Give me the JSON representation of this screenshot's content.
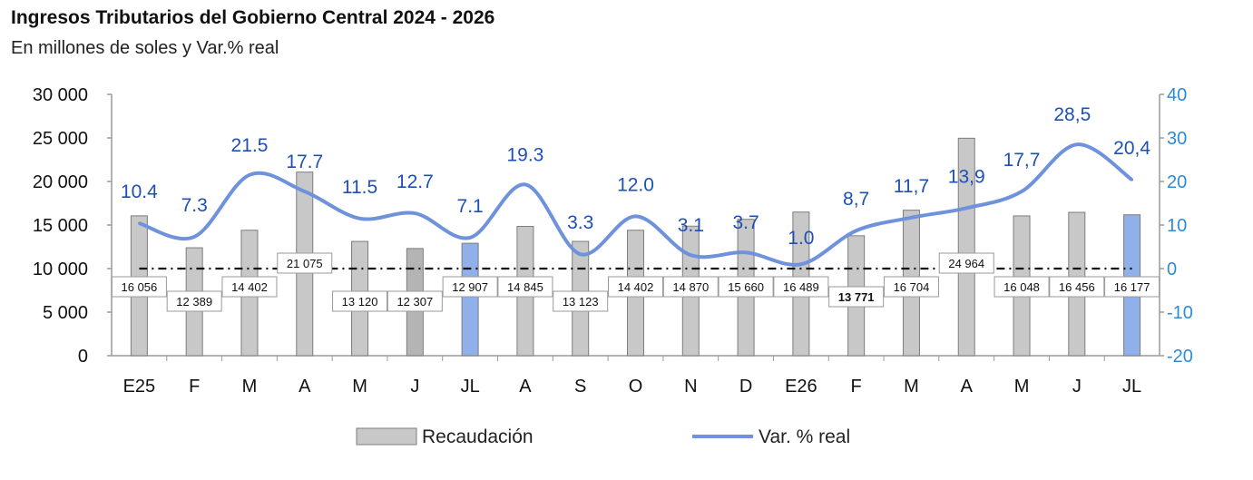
{
  "title": "Ingresos Tributarios del Gobierno Central 2024 - 2026",
  "subtitle": "En millones de soles y Var.% real",
  "colors": {
    "bar_gray": "#c8c8c8",
    "bar_gray_dark": "#b4b4b4",
    "bar_blue": "#8fb0e8",
    "line": "#6f92dc",
    "right_axis": "#2e8bd6",
    "point_label": "#1f4fb5"
  },
  "chart_data": {
    "type": "bar",
    "title": "Ingresos Tributarios del Gobierno Central 2024 - 2026",
    "subtitle": "En millones de soles y Var.% real",
    "categories": [
      "E25",
      "F",
      "M",
      "A",
      "M",
      "J",
      "JL",
      "A",
      "S",
      "O",
      "N",
      "D",
      "E26",
      "F",
      "M",
      "A",
      "M",
      "J",
      "JL"
    ],
    "series": [
      {
        "name": "Recaudación",
        "type": "bar",
        "axis": "left",
        "values": [
          16056,
          12389,
          14402,
          21075,
          13120,
          12307,
          12907,
          14845,
          13123,
          14402,
          14870,
          15660,
          16489,
          13771,
          16704,
          24964,
          16048,
          16456,
          16177
        ],
        "labels": [
          "16 056",
          "12 389",
          "14 402",
          "21 075",
          "13 120",
          "12 307",
          "12 907",
          "14 845",
          "13 123",
          "14 402",
          "14 870",
          "15 660",
          "16 489",
          "13 771",
          "16 704",
          "24 964",
          "16 048",
          "16 456",
          "16 177"
        ],
        "highlight_indices": [
          6,
          18
        ],
        "bold_label_indices": [
          13
        ]
      },
      {
        "name": "Var. % real",
        "type": "line",
        "axis": "right",
        "values": [
          10.4,
          7.3,
          21.5,
          17.7,
          11.5,
          12.7,
          7.1,
          19.3,
          3.3,
          12.0,
          3.1,
          3.7,
          1.0,
          8.7,
          11.7,
          13.9,
          17.7,
          28.5,
          20.4
        ],
        "labels": [
          "10.4",
          "7.3",
          "21.5",
          "17.7",
          "11.5",
          "12.7",
          "7.1",
          "19.3",
          "3.3",
          "12.0",
          "3.1",
          "3.7",
          "1.0",
          "8,7",
          "11,7",
          "13,9",
          "17,7",
          "28,5",
          "20,4"
        ]
      }
    ],
    "y_left": {
      "min": 0,
      "max": 30000,
      "ticks": [
        "0",
        "5 000",
        "10 000",
        "15 000",
        "20 000",
        "25 000",
        "30 000"
      ]
    },
    "y_right": {
      "min": -20,
      "max": 40,
      "ticks": [
        "-20",
        "-10",
        "0",
        "10",
        "20",
        "30",
        "40"
      ]
    },
    "zero_reference_line": "dash-dot at 0 % (right axis)",
    "grid": false,
    "legend": {
      "position": "bottom",
      "items": [
        {
          "label": "Recaudación",
          "kind": "bar"
        },
        {
          "label": "Var. % real",
          "kind": "line"
        }
      ]
    }
  }
}
